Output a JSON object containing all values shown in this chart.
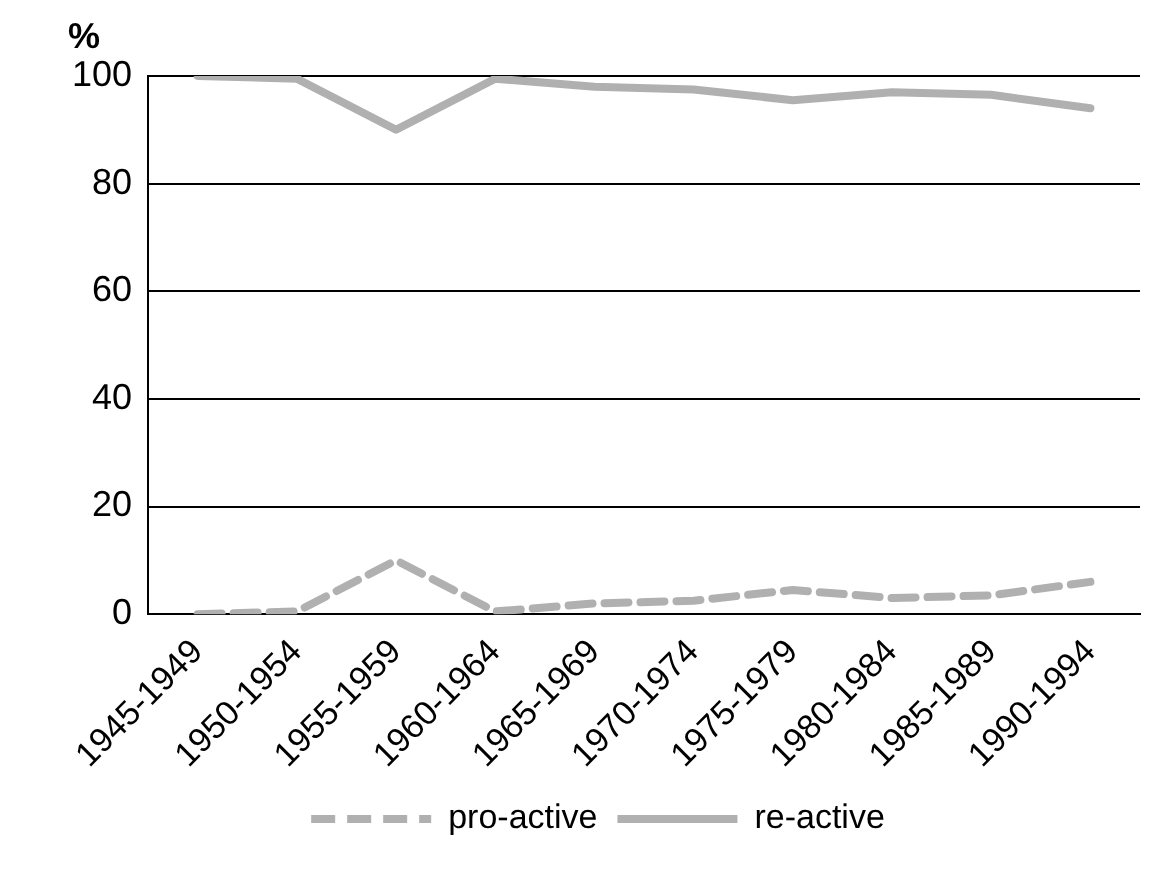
{
  "chart_data": {
    "type": "line",
    "ylabel": "%",
    "categories": [
      "1945-1949",
      "1950-1954",
      "1955-1959",
      "1960-1964",
      "1965-1969",
      "1970-1974",
      "1975-1979",
      "1980-1984",
      "1985-1989",
      "1990-1994"
    ],
    "series": [
      {
        "name": "pro-active",
        "color": "#b0b0b0",
        "line_style": "dashed",
        "values": [
          0,
          0.5,
          10,
          0.5,
          2,
          2.5,
          4.5,
          3,
          3.5,
          6
        ]
      },
      {
        "name": "re-active",
        "color": "#b0b0b0",
        "line_style": "solid",
        "values": [
          100,
          99.5,
          90,
          99.5,
          98,
          97.5,
          95.5,
          97,
          96.5,
          94
        ]
      }
    ],
    "ylim": [
      0,
      100
    ],
    "yticks": [
      0,
      20,
      40,
      60,
      80,
      100
    ],
    "grid": "y",
    "legend": "bottom",
    "marker": "none"
  }
}
